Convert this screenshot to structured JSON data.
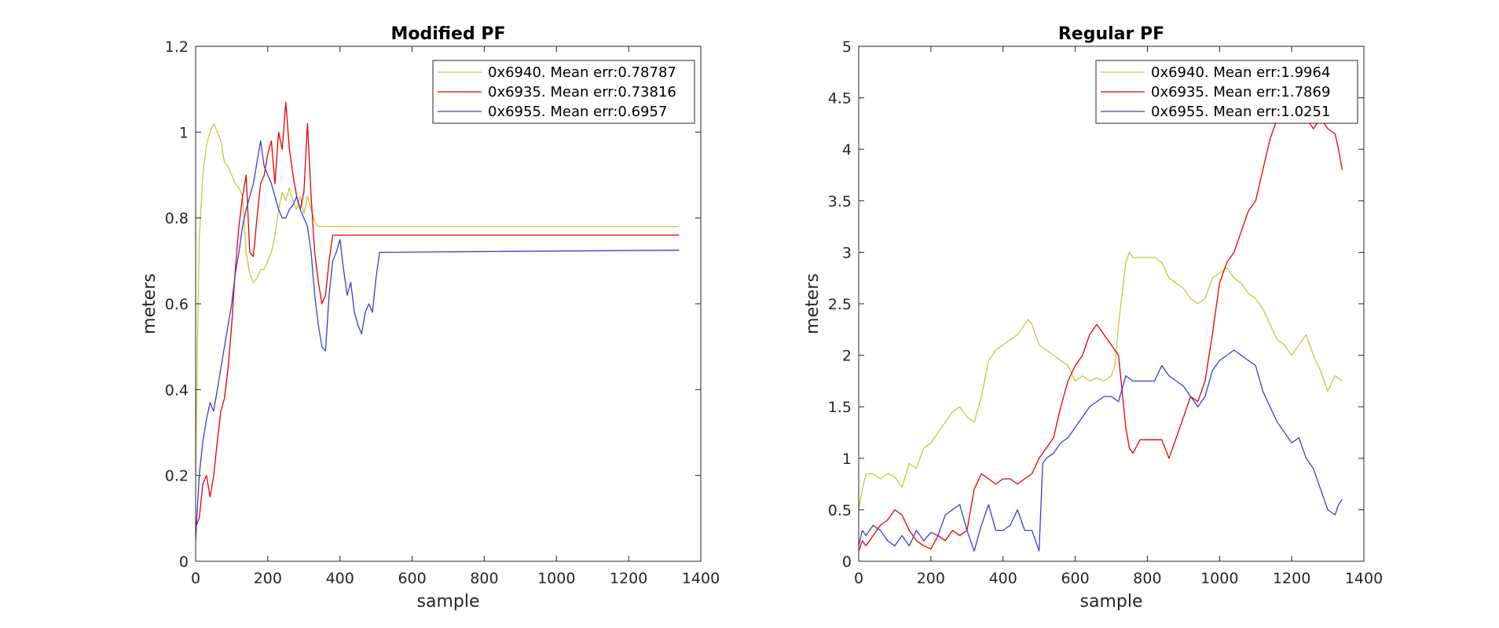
{
  "chart_data": [
    {
      "type": "line",
      "title": "Modified PF",
      "xlabel": "sample",
      "ylabel": "meters",
      "xlim": [
        0,
        1400
      ],
      "ylim": [
        0,
        1.2
      ],
      "xticks": [
        0,
        200,
        400,
        600,
        800,
        1000,
        1200,
        1400
      ],
      "yticks": [
        0,
        0.2,
        0.4,
        0.6,
        0.8,
        1,
        1.2
      ],
      "xtick_labels": [
        "0",
        "200",
        "400",
        "600",
        "800",
        "1000",
        "1200",
        "1400"
      ],
      "ytick_labels": [
        "0",
        "0.2",
        "0.4",
        "0.6",
        "0.8",
        "1",
        "1.2"
      ],
      "grid": false,
      "legend_position": "top-right",
      "series": [
        {
          "name": "0x6940. Mean err:0.78787",
          "color": "#c8c83c",
          "x": [
            0,
            5,
            10,
            20,
            30,
            40,
            50,
            60,
            70,
            80,
            90,
            100,
            110,
            120,
            130,
            140,
            150,
            160,
            170,
            180,
            190,
            200,
            210,
            220,
            230,
            240,
            250,
            260,
            270,
            280,
            290,
            300,
            310,
            320,
            330,
            340,
            1340
          ],
          "y": [
            0.2,
            0.5,
            0.75,
            0.9,
            0.97,
            1.0,
            1.02,
            1.0,
            0.98,
            0.93,
            0.92,
            0.9,
            0.88,
            0.87,
            0.85,
            0.72,
            0.67,
            0.65,
            0.66,
            0.68,
            0.68,
            0.7,
            0.72,
            0.76,
            0.82,
            0.86,
            0.84,
            0.87,
            0.84,
            0.82,
            0.85,
            0.81,
            0.85,
            0.82,
            0.79,
            0.78,
            0.78
          ]
        },
        {
          "name": "0x6935. Mean err:0.73816",
          "color": "#e60000",
          "x": [
            0,
            10,
            20,
            30,
            40,
            50,
            60,
            70,
            80,
            90,
            100,
            110,
            120,
            130,
            140,
            150,
            160,
            170,
            180,
            190,
            200,
            210,
            220,
            230,
            240,
            250,
            260,
            270,
            280,
            290,
            300,
            310,
            320,
            330,
            340,
            350,
            360,
            370,
            380,
            1340
          ],
          "y": [
            0.08,
            0.1,
            0.18,
            0.2,
            0.15,
            0.2,
            0.28,
            0.35,
            0.38,
            0.45,
            0.55,
            0.68,
            0.78,
            0.85,
            0.9,
            0.72,
            0.71,
            0.8,
            0.88,
            0.9,
            0.95,
            0.98,
            0.88,
            1.0,
            0.96,
            1.07,
            0.96,
            0.9,
            0.85,
            0.82,
            0.86,
            1.02,
            0.85,
            0.72,
            0.65,
            0.6,
            0.62,
            0.7,
            0.76,
            0.76
          ]
        },
        {
          "name": "0x6955. Mean err:0.6957",
          "color": "#3c3cd7",
          "x": [
            0,
            10,
            20,
            30,
            40,
            50,
            60,
            70,
            80,
            90,
            100,
            110,
            120,
            130,
            140,
            150,
            160,
            170,
            180,
            190,
            200,
            210,
            220,
            230,
            240,
            250,
            260,
            270,
            280,
            290,
            300,
            310,
            320,
            330,
            340,
            350,
            360,
            370,
            380,
            390,
            400,
            410,
            420,
            430,
            440,
            450,
            460,
            470,
            480,
            490,
            500,
            510,
            1340
          ],
          "y": [
            0.05,
            0.2,
            0.28,
            0.33,
            0.37,
            0.35,
            0.4,
            0.45,
            0.5,
            0.55,
            0.6,
            0.67,
            0.72,
            0.78,
            0.82,
            0.85,
            0.88,
            0.93,
            0.98,
            0.92,
            0.9,
            0.88,
            0.85,
            0.82,
            0.8,
            0.8,
            0.82,
            0.83,
            0.85,
            0.82,
            0.8,
            0.78,
            0.72,
            0.62,
            0.55,
            0.5,
            0.49,
            0.62,
            0.7,
            0.72,
            0.75,
            0.68,
            0.62,
            0.65,
            0.58,
            0.55,
            0.53,
            0.58,
            0.6,
            0.58,
            0.66,
            0.72,
            0.725
          ]
        }
      ]
    },
    {
      "type": "line",
      "title": "Regular PF",
      "xlabel": "sample",
      "ylabel": "meters",
      "xlim": [
        0,
        1400
      ],
      "ylim": [
        0,
        5
      ],
      "xticks": [
        0,
        200,
        400,
        600,
        800,
        1000,
        1200,
        1400
      ],
      "yticks": [
        0,
        0.5,
        1,
        1.5,
        2,
        2.5,
        3,
        3.5,
        4,
        4.5,
        5
      ],
      "xtick_labels": [
        "0",
        "200",
        "400",
        "600",
        "800",
        "1000",
        "1200",
        "1400"
      ],
      "ytick_labels": [
        "0",
        "0.5",
        "1",
        "1.5",
        "2",
        "2.5",
        "3",
        "3.5",
        "4",
        "4.5",
        "5"
      ],
      "grid": false,
      "legend_position": "top-right",
      "series": [
        {
          "name": "0x6940. Mean err:1.9964",
          "color": "#c8c83c",
          "x": [
            0,
            10,
            20,
            40,
            60,
            80,
            100,
            120,
            140,
            160,
            180,
            200,
            220,
            240,
            260,
            280,
            300,
            320,
            340,
            360,
            380,
            400,
            420,
            440,
            460,
            470,
            480,
            490,
            500,
            520,
            540,
            560,
            580,
            600,
            620,
            640,
            660,
            680,
            700,
            710,
            720,
            730,
            740,
            750,
            760,
            780,
            800,
            820,
            840,
            860,
            880,
            900,
            920,
            940,
            960,
            980,
            1000,
            1020,
            1040,
            1060,
            1080,
            1100,
            1120,
            1140,
            1160,
            1180,
            1200,
            1220,
            1240,
            1260,
            1280,
            1300,
            1320,
            1340
          ],
          "y": [
            0.5,
            0.7,
            0.85,
            0.85,
            0.8,
            0.85,
            0.82,
            0.72,
            0.95,
            0.9,
            1.1,
            1.15,
            1.25,
            1.35,
            1.45,
            1.5,
            1.4,
            1.35,
            1.6,
            1.95,
            2.05,
            2.1,
            2.15,
            2.2,
            2.3,
            2.35,
            2.3,
            2.2,
            2.1,
            2.05,
            2.0,
            1.95,
            1.9,
            1.75,
            1.8,
            1.75,
            1.78,
            1.75,
            1.8,
            1.9,
            2.3,
            2.6,
            2.9,
            3.0,
            2.95,
            2.95,
            2.95,
            2.95,
            2.9,
            2.75,
            2.7,
            2.65,
            2.55,
            2.5,
            2.55,
            2.75,
            2.8,
            2.85,
            2.75,
            2.7,
            2.6,
            2.55,
            2.45,
            2.3,
            2.15,
            2.1,
            2.0,
            2.1,
            2.2,
            2.0,
            1.85,
            1.65,
            1.8,
            1.75
          ]
        },
        {
          "name": "0x6935. Mean err:1.7869",
          "color": "#e60000",
          "x": [
            0,
            10,
            20,
            40,
            60,
            80,
            100,
            120,
            140,
            160,
            180,
            200,
            220,
            240,
            260,
            280,
            300,
            320,
            340,
            360,
            380,
            400,
            420,
            440,
            460,
            480,
            500,
            520,
            540,
            560,
            580,
            600,
            620,
            640,
            660,
            680,
            700,
            720,
            740,
            750,
            760,
            780,
            800,
            820,
            840,
            860,
            880,
            900,
            920,
            940,
            960,
            980,
            1000,
            1020,
            1040,
            1060,
            1080,
            1100,
            1120,
            1140,
            1160,
            1180,
            1200,
            1220,
            1240,
            1260,
            1280,
            1300,
            1320,
            1330,
            1340
          ],
          "y": [
            0.1,
            0.2,
            0.15,
            0.25,
            0.35,
            0.4,
            0.5,
            0.45,
            0.3,
            0.2,
            0.15,
            0.12,
            0.25,
            0.2,
            0.3,
            0.25,
            0.3,
            0.7,
            0.85,
            0.8,
            0.75,
            0.8,
            0.8,
            0.75,
            0.8,
            0.85,
            1.0,
            1.1,
            1.2,
            1.5,
            1.75,
            1.9,
            2.0,
            2.2,
            2.3,
            2.2,
            2.1,
            2.0,
            1.3,
            1.1,
            1.05,
            1.18,
            1.18,
            1.18,
            1.18,
            1.0,
            1.2,
            1.4,
            1.6,
            1.55,
            1.75,
            2.2,
            2.7,
            2.9,
            3.0,
            3.2,
            3.4,
            3.5,
            3.8,
            4.1,
            4.3,
            4.4,
            4.45,
            4.5,
            4.3,
            4.2,
            4.3,
            4.2,
            4.15,
            4.0,
            3.8
          ]
        },
        {
          "name": "0x6955. Mean err:1.0251",
          "color": "#3c3cd7",
          "x": [
            0,
            10,
            20,
            40,
            60,
            80,
            100,
            120,
            140,
            160,
            180,
            200,
            220,
            240,
            260,
            280,
            300,
            320,
            340,
            360,
            380,
            400,
            420,
            440,
            460,
            480,
            490,
            500,
            510,
            520,
            540,
            560,
            580,
            600,
            620,
            640,
            660,
            680,
            700,
            720,
            740,
            760,
            780,
            800,
            820,
            840,
            860,
            880,
            900,
            920,
            940,
            960,
            980,
            1000,
            1020,
            1040,
            1060,
            1080,
            1100,
            1120,
            1140,
            1160,
            1180,
            1200,
            1220,
            1240,
            1260,
            1280,
            1300,
            1320,
            1330,
            1340
          ],
          "y": [
            0.15,
            0.3,
            0.25,
            0.35,
            0.3,
            0.2,
            0.15,
            0.25,
            0.15,
            0.3,
            0.2,
            0.28,
            0.25,
            0.45,
            0.5,
            0.55,
            0.3,
            0.1,
            0.35,
            0.55,
            0.3,
            0.3,
            0.35,
            0.5,
            0.3,
            0.3,
            0.2,
            0.1,
            0.95,
            1.0,
            1.05,
            1.15,
            1.2,
            1.3,
            1.4,
            1.5,
            1.55,
            1.6,
            1.6,
            1.55,
            1.8,
            1.75,
            1.75,
            1.75,
            1.75,
            1.9,
            1.8,
            1.75,
            1.7,
            1.6,
            1.5,
            1.6,
            1.85,
            1.95,
            2.0,
            2.05,
            2.0,
            1.95,
            1.9,
            1.65,
            1.5,
            1.35,
            1.25,
            1.15,
            1.2,
            1.0,
            0.9,
            0.7,
            0.5,
            0.45,
            0.55,
            0.6
          ]
        }
      ]
    }
  ]
}
